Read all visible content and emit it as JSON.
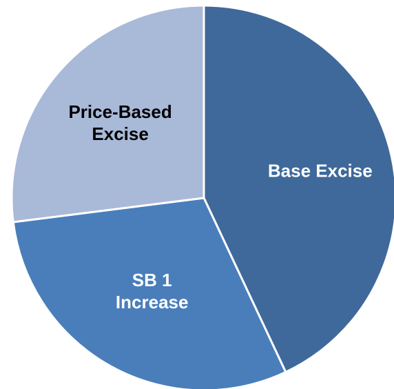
{
  "chart_data": {
    "type": "pie",
    "title": "",
    "legend": "none",
    "start_angle_deg": 0,
    "direction": "clockwise",
    "slices": [
      {
        "label_lines": [
          "Base Excise"
        ],
        "value": 43,
        "color": "#3f699a",
        "label_color": "#ffffff"
      },
      {
        "label_lines": [
          "SB 1",
          "Increase"
        ],
        "value": 30,
        "color": "#4a7ebb",
        "label_color": "#ffffff"
      },
      {
        "label_lines": [
          "Price-Based",
          "Excise"
        ],
        "value": 27,
        "color": "#a9b9d8",
        "label_color": "#000000"
      }
    ]
  }
}
